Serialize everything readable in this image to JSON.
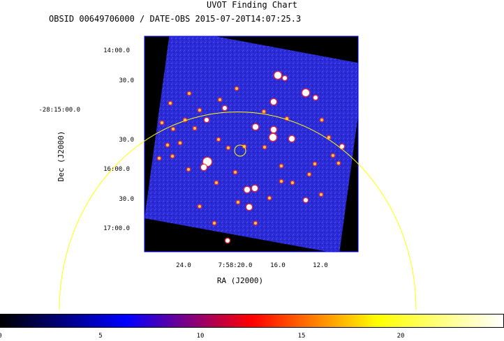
{
  "chart": {
    "title": "UVOT Finding Chart",
    "subtitle": "OBSID 00649706000 / DATE-OBS 2015-07-20T14:07:25.3",
    "dec_axis_label": "Dec (J2000)",
    "ra_axis_label": "RA (J2000)",
    "dec_ticks": [
      "14:00.0",
      "30.0",
      "-28:15:00.0",
      "30.0",
      "16:00.0",
      "30.0",
      "17:00.0"
    ],
    "ra_ticks": [
      "24.0",
      "7:58:20.0",
      "16.0",
      "12.0"
    ]
  },
  "colorbar": {
    "labels": [
      "0",
      "5",
      "10",
      "15",
      "20"
    ],
    "colors": [
      "#000000",
      "#0000ff",
      "#ff0000",
      "#ffff00",
      "#ffffff"
    ]
  },
  "overlay_colors": {
    "error_circle": "#ffff00",
    "target_marker": "#ffff00",
    "image_frame": "#0000ff",
    "sky_background": "#2a2ad8"
  }
}
